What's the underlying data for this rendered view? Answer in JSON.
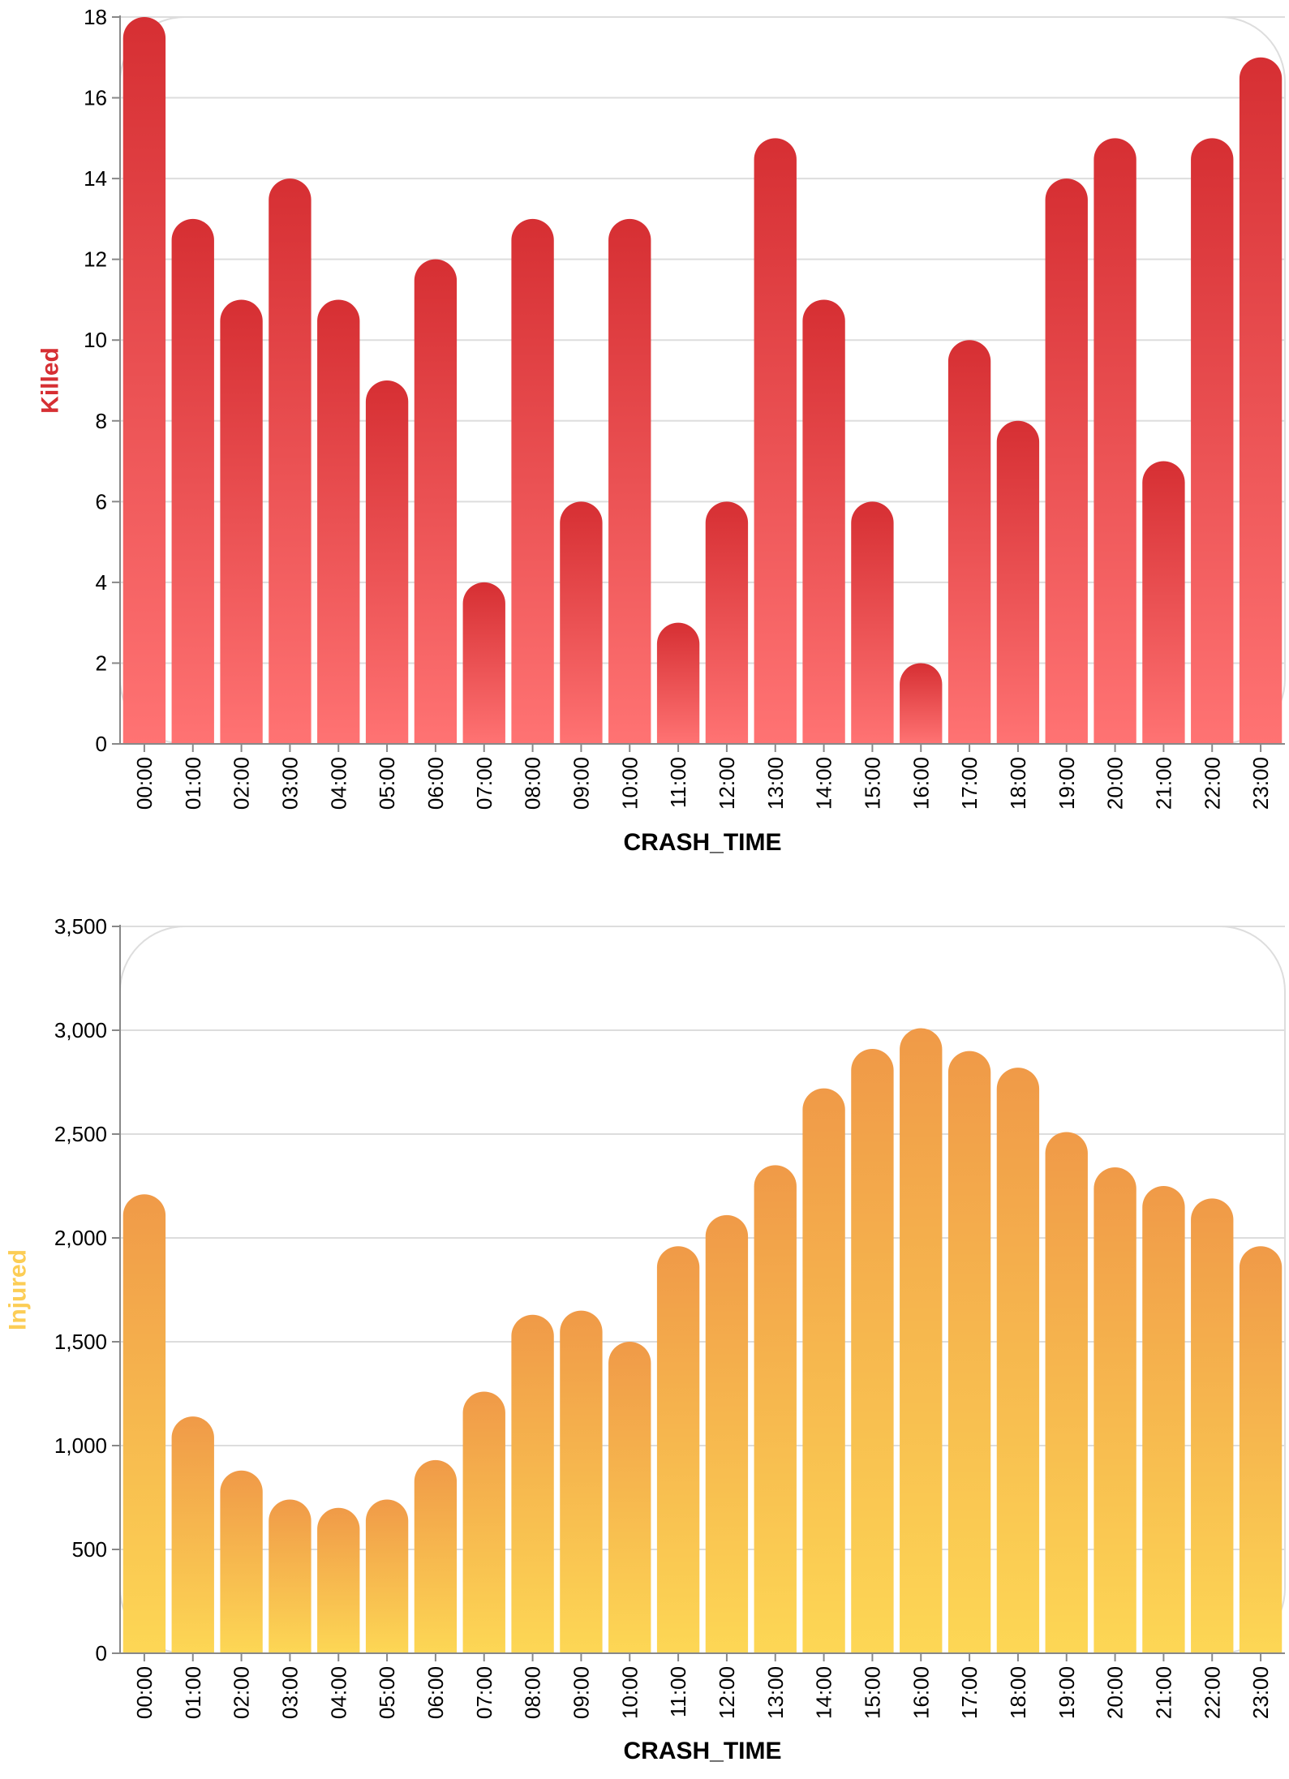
{
  "chart_data": [
    {
      "type": "bar",
      "xlabel": "CRASH_TIME",
      "ylabel": "Killed",
      "ylabel_color": "#d62f33",
      "gradient": {
        "top": "#d62f33",
        "bottom": "#ff7373"
      },
      "ylim": [
        0,
        18
      ],
      "yticks": [
        0,
        2,
        4,
        6,
        8,
        10,
        12,
        14,
        16,
        18
      ],
      "ytick_labels": [
        "0",
        "2",
        "4",
        "6",
        "8",
        "10",
        "12",
        "14",
        "16",
        "18"
      ],
      "grid": true,
      "categories": [
        "00:00",
        "01:00",
        "02:00",
        "03:00",
        "04:00",
        "05:00",
        "06:00",
        "07:00",
        "08:00",
        "09:00",
        "10:00",
        "11:00",
        "12:00",
        "13:00",
        "14:00",
        "15:00",
        "16:00",
        "17:00",
        "18:00",
        "19:00",
        "20:00",
        "21:00",
        "22:00",
        "23:00"
      ],
      "values": [
        18,
        13,
        11,
        14,
        11,
        9,
        12,
        4,
        13,
        6,
        13,
        3,
        6,
        15,
        11,
        6,
        2,
        10,
        8,
        14,
        15,
        7,
        15,
        17
      ]
    },
    {
      "type": "bar",
      "xlabel": "CRASH_TIME",
      "ylabel": "Injured",
      "ylabel_color": "#fccd55",
      "gradient": {
        "top": "#f09a48",
        "bottom": "#fdd755"
      },
      "ylim": [
        0,
        3500
      ],
      "yticks": [
        0,
        500,
        1000,
        1500,
        2000,
        2500,
        3000,
        3500
      ],
      "ytick_labels": [
        "0",
        "500",
        "1,000",
        "1,500",
        "2,000",
        "2,500",
        "3,000",
        "3,500"
      ],
      "grid": true,
      "categories": [
        "00:00",
        "01:00",
        "02:00",
        "03:00",
        "04:00",
        "05:00",
        "06:00",
        "07:00",
        "08:00",
        "09:00",
        "10:00",
        "11:00",
        "12:00",
        "13:00",
        "14:00",
        "15:00",
        "16:00",
        "17:00",
        "18:00",
        "19:00",
        "20:00",
        "21:00",
        "22:00",
        "23:00"
      ],
      "values": [
        2210,
        1140,
        880,
        740,
        700,
        740,
        930,
        1260,
        1630,
        1650,
        1500,
        1960,
        2110,
        2350,
        2720,
        2910,
        3010,
        2900,
        2820,
        2510,
        2340,
        2250,
        2190,
        1960
      ]
    }
  ]
}
